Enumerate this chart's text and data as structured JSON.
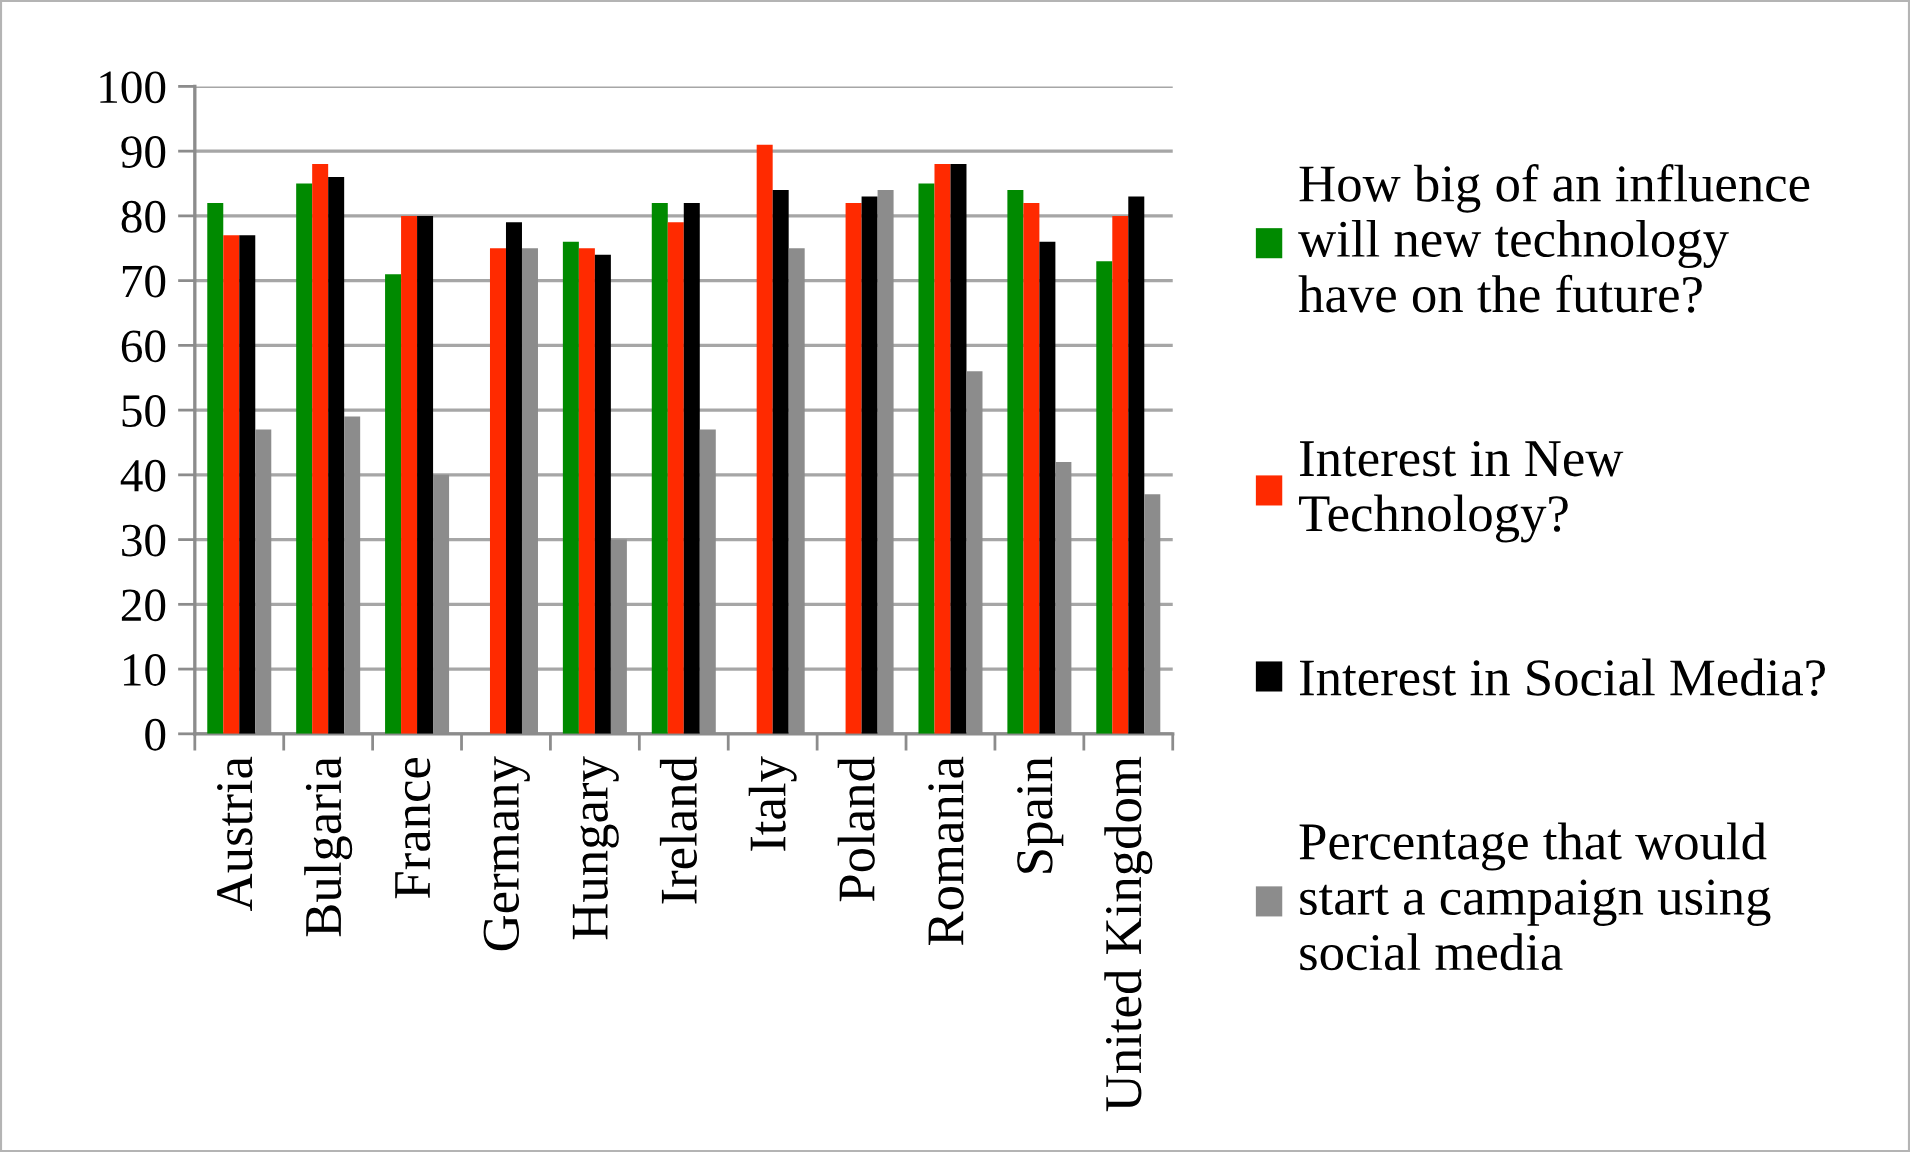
{
  "chart_data": {
    "type": "bar",
    "categories": [
      "Austria",
      "Bulgaria",
      "France",
      "Germany",
      "Hungary",
      "Ireland",
      "Italy",
      "Poland",
      "Romania",
      "Spain",
      "United Kingdom"
    ],
    "series": [
      {
        "name": "How big of an influence\nwill new technology\nhave on the future?",
        "color": "#008a00",
        "values": [
          82,
          85,
          71,
          null,
          76,
          82,
          null,
          null,
          85,
          84,
          73
        ]
      },
      {
        "name": "Interest in New\nTechnology?",
        "color": "#ff2a00",
        "values": [
          77,
          88,
          80,
          75,
          75,
          79,
          91,
          82,
          88,
          82,
          80
        ]
      },
      {
        "name": "Interest in Social Media?",
        "color": "#000000",
        "values": [
          77,
          86,
          80,
          79,
          74,
          82,
          84,
          83,
          88,
          76,
          83
        ]
      },
      {
        "name": "Percentage that would\nstart a campaign using\nsocial media",
        "color": "#8c8c8c",
        "values": [
          47,
          49,
          40,
          75,
          30,
          47,
          75,
          84,
          56,
          42,
          37
        ]
      }
    ],
    "ylim": [
      0,
      100
    ],
    "yticks": [
      0,
      10,
      20,
      30,
      40,
      50,
      60,
      70,
      80,
      90,
      100
    ],
    "grid": "y",
    "legend": "right"
  }
}
